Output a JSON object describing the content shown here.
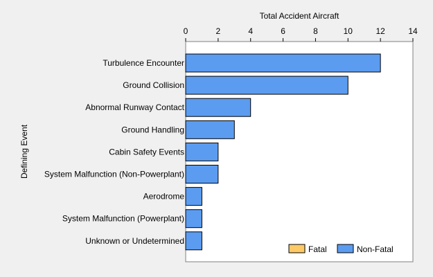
{
  "chart_data": {
    "type": "bar",
    "orientation": "horizontal",
    "xlabel": "Total Accident Aircraft",
    "ylabel": "Defining Event",
    "xlim": [
      0,
      14
    ],
    "xticks": [
      0,
      2,
      4,
      6,
      8,
      10,
      12,
      14
    ],
    "x_axis_position": "top",
    "grid": false,
    "legend_position": "bottom-right",
    "categories": [
      "Turbulence Encounter",
      "Ground Collision",
      "Abnormal Runway Contact",
      "Ground Handling",
      "Cabin Safety Events",
      "System Malfunction (Non-Powerplant)",
      "Aerodrome",
      "System Malfunction (Powerplant)",
      "Unknown or Undetermined"
    ],
    "series": [
      {
        "name": "Fatal",
        "color": "#ffc966",
        "values": [
          0,
          0,
          0,
          0,
          0,
          0,
          0,
          0,
          0
        ]
      },
      {
        "name": "Non-Fatal",
        "color": "#5b9cf0",
        "values": [
          12,
          10,
          4,
          3,
          2,
          2,
          1,
          1,
          1
        ]
      }
    ]
  }
}
